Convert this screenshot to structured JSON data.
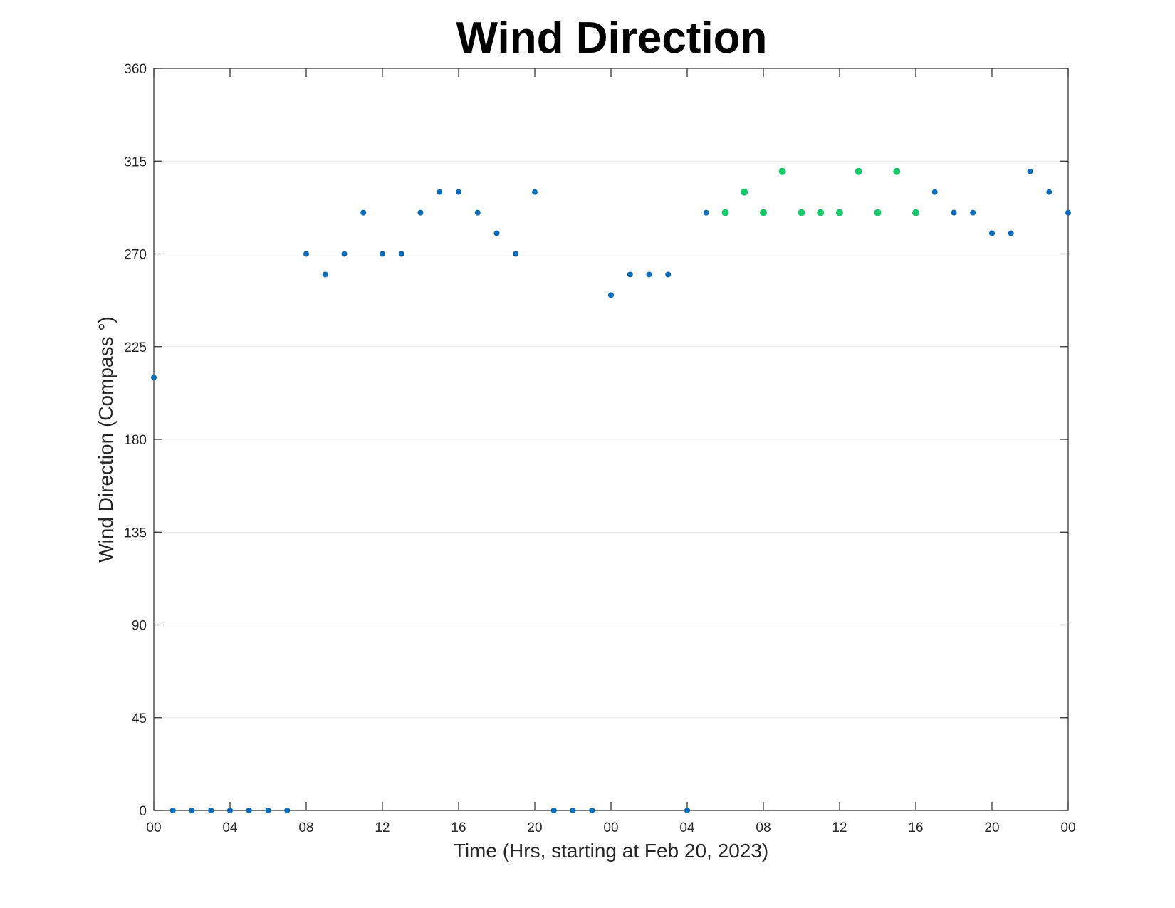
{
  "chart_data": {
    "type": "scatter",
    "title": "Wind Direction",
    "xlabel": "Time (Hrs, starting at Feb 20, 2023)",
    "ylabel": "Wind Direction (Compass °)",
    "x_unit": "hours",
    "xlim": [
      0,
      48
    ],
    "ylim": [
      0,
      360
    ],
    "yticks": [
      0,
      45,
      90,
      135,
      180,
      225,
      270,
      315,
      360
    ],
    "xticks": [
      {
        "x": 0,
        "label": "00"
      },
      {
        "x": 4,
        "label": "04"
      },
      {
        "x": 8,
        "label": "08"
      },
      {
        "x": 12,
        "label": "12"
      },
      {
        "x": 16,
        "label": "16"
      },
      {
        "x": 20,
        "label": "20"
      },
      {
        "x": 24,
        "label": "00"
      },
      {
        "x": 28,
        "label": "04"
      },
      {
        "x": 32,
        "label": "08"
      },
      {
        "x": 36,
        "label": "12"
      },
      {
        "x": 40,
        "label": "16"
      },
      {
        "x": 44,
        "label": "20"
      },
      {
        "x": 48,
        "label": "00"
      }
    ],
    "grid": "horizontal",
    "colors": {
      "blue": "#0a6bb8",
      "green": "#17c96a"
    },
    "points": [
      {
        "x": 0,
        "y": 210,
        "c": "blue"
      },
      {
        "x": 1,
        "y": 0,
        "c": "blue"
      },
      {
        "x": 2,
        "y": 0,
        "c": "blue"
      },
      {
        "x": 3,
        "y": 0,
        "c": "blue"
      },
      {
        "x": 4,
        "y": 0,
        "c": "blue"
      },
      {
        "x": 5,
        "y": 0,
        "c": "blue"
      },
      {
        "x": 6,
        "y": 0,
        "c": "blue"
      },
      {
        "x": 7,
        "y": 0,
        "c": "blue"
      },
      {
        "x": 8,
        "y": 270,
        "c": "blue"
      },
      {
        "x": 9,
        "y": 260,
        "c": "blue"
      },
      {
        "x": 10,
        "y": 270,
        "c": "blue"
      },
      {
        "x": 11,
        "y": 290,
        "c": "blue"
      },
      {
        "x": 12,
        "y": 270,
        "c": "blue"
      },
      {
        "x": 13,
        "y": 270,
        "c": "blue"
      },
      {
        "x": 14,
        "y": 290,
        "c": "blue"
      },
      {
        "x": 15,
        "y": 300,
        "c": "blue"
      },
      {
        "x": 16,
        "y": 300,
        "c": "blue"
      },
      {
        "x": 17,
        "y": 290,
        "c": "blue"
      },
      {
        "x": 18,
        "y": 280,
        "c": "blue"
      },
      {
        "x": 19,
        "y": 270,
        "c": "blue"
      },
      {
        "x": 20,
        "y": 300,
        "c": "blue"
      },
      {
        "x": 21,
        "y": 0,
        "c": "blue"
      },
      {
        "x": 22,
        "y": 0,
        "c": "blue"
      },
      {
        "x": 23,
        "y": 0,
        "c": "blue"
      },
      {
        "x": 24,
        "y": 250,
        "c": "blue"
      },
      {
        "x": 25,
        "y": 260,
        "c": "blue"
      },
      {
        "x": 26,
        "y": 260,
        "c": "blue"
      },
      {
        "x": 27,
        "y": 260,
        "c": "blue"
      },
      {
        "x": 28,
        "y": 0,
        "c": "blue"
      },
      {
        "x": 29,
        "y": 290,
        "c": "blue"
      },
      {
        "x": 30,
        "y": 290,
        "c": "green"
      },
      {
        "x": 31,
        "y": 300,
        "c": "green"
      },
      {
        "x": 32,
        "y": 290,
        "c": "green"
      },
      {
        "x": 33,
        "y": 310,
        "c": "green"
      },
      {
        "x": 34,
        "y": 290,
        "c": "green"
      },
      {
        "x": 35,
        "y": 290,
        "c": "green"
      },
      {
        "x": 36,
        "y": 290,
        "c": "green"
      },
      {
        "x": 37,
        "y": 310,
        "c": "green"
      },
      {
        "x": 38,
        "y": 290,
        "c": "green"
      },
      {
        "x": 39,
        "y": 310,
        "c": "green"
      },
      {
        "x": 40,
        "y": 290,
        "c": "green"
      },
      {
        "x": 41,
        "y": 300,
        "c": "blue"
      },
      {
        "x": 42,
        "y": 290,
        "c": "blue"
      },
      {
        "x": 43,
        "y": 290,
        "c": "blue"
      },
      {
        "x": 44,
        "y": 280,
        "c": "blue"
      },
      {
        "x": 45,
        "y": 280,
        "c": "blue"
      },
      {
        "x": 46,
        "y": 310,
        "c": "blue"
      },
      {
        "x": 47,
        "y": 300,
        "c": "blue"
      },
      {
        "x": 48,
        "y": 290,
        "c": "blue"
      }
    ]
  }
}
